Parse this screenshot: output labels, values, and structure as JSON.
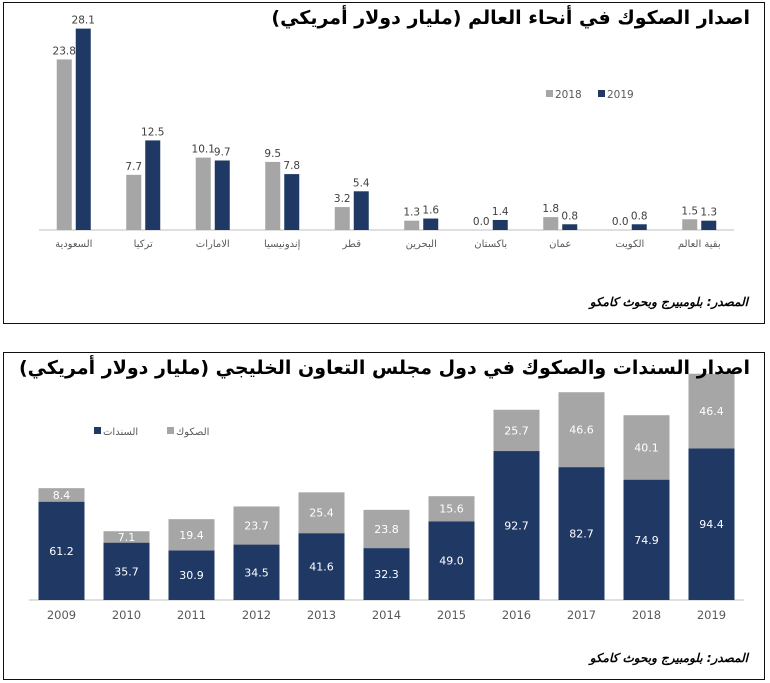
{
  "chart_data": [
    {
      "type": "bar",
      "title": "اصدار الصكوك في أنحاء العالم (مليار دولار أمريكي)",
      "categories": [
        "السعودية",
        "تركيا",
        "الامارات",
        "إندونيسيا",
        "قطر",
        "البحرين",
        "باكستان",
        "عمان",
        "الكويت",
        "بقية العالم"
      ],
      "series": [
        {
          "name": "2018",
          "values": [
            23.8,
            7.7,
            10.1,
            9.5,
            3.2,
            1.3,
            0.0,
            1.8,
            0.0,
            1.5
          ]
        },
        {
          "name": "2019",
          "values": [
            28.1,
            12.5,
            9.7,
            7.8,
            5.4,
            1.6,
            1.4,
            0.8,
            0.8,
            1.3
          ]
        }
      ],
      "ylim": [
        0,
        30
      ],
      "legend_position": "top-right",
      "grid": false,
      "source": "المصدر: بلومبيرج وبحوث كامكو"
    },
    {
      "type": "bar",
      "stacked": true,
      "title": "اصدار السندات والصكوك في دول مجلس التعاون الخليجي (مليار دولار أمريكي)",
      "categories": [
        "2009",
        "2010",
        "2011",
        "2012",
        "2013",
        "2014",
        "2015",
        "2016",
        "2017",
        "2018",
        "2019"
      ],
      "series": [
        {
          "name": "السندات",
          "values": [
            61.2,
            35.7,
            30.9,
            34.5,
            41.6,
            32.3,
            49.0,
            92.7,
            82.7,
            74.9,
            94.4
          ]
        },
        {
          "name": "الصكوك",
          "values": [
            8.4,
            7.1,
            19.4,
            23.7,
            25.4,
            23.8,
            15.6,
            25.7,
            46.6,
            40.1,
            46.4
          ]
        }
      ],
      "ylim": [
        0,
        145
      ],
      "legend_position": "top-left",
      "grid": false,
      "source": "المصدر: بلومبيرج وبحوث كامكو"
    }
  ],
  "colors": {
    "grey": "#a6a6a6",
    "navy": "#1f3864",
    "axis": "#bfbfbf",
    "label_dark": "#404040"
  }
}
